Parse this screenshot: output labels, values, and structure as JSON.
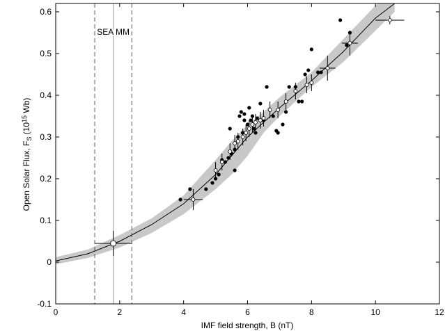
{
  "chart_data": {
    "type": "scatter",
    "x_label": "IMF field strength, B (nT)",
    "y_label": {
      "text": "Open Solar Flux, F",
      "sub": "S",
      "mid": " (10",
      "sup": "15",
      "end": " Wb)"
    },
    "xlim": [
      0,
      12
    ],
    "ylim": [
      -0.1,
      0.62
    ],
    "xticks": [
      0,
      2,
      4,
      6,
      8,
      10,
      12
    ],
    "yticks": [
      -0.1,
      0,
      0.1,
      0.2,
      0.3,
      0.4,
      0.5,
      0.6
    ],
    "fit": {
      "color": "#000000",
      "band_color": "#c8c8c8",
      "x": [
        0,
        1,
        2,
        3,
        4,
        5,
        5.5,
        6,
        6.5,
        7,
        8,
        9,
        10,
        10.6
      ],
      "values": [
        0.003,
        0.02,
        0.05,
        0.09,
        0.14,
        0.21,
        0.255,
        0.3,
        0.335,
        0.37,
        0.435,
        0.505,
        0.585,
        0.62
      ],
      "lower": [
        -0.005,
        0.01,
        0.035,
        0.07,
        0.115,
        0.175,
        0.21,
        0.255,
        0.31,
        0.35,
        0.42,
        0.48,
        0.555,
        0.6
      ],
      "upper": [
        0.012,
        0.03,
        0.065,
        0.105,
        0.16,
        0.245,
        0.29,
        0.33,
        0.36,
        0.395,
        0.455,
        0.535,
        0.615,
        0.66
      ]
    },
    "series": [
      {
        "color": "#000000",
        "x": [
          3.9,
          4.2,
          4.7,
          4.9,
          5.0,
          5.1,
          5.2,
          5.3,
          5.4,
          5.45,
          5.5,
          5.6,
          5.6,
          5.7,
          5.75,
          5.8,
          5.85,
          5.9,
          5.9,
          6.0,
          6.05,
          6.1,
          6.15,
          6.2,
          6.25,
          6.3,
          6.4,
          6.5,
          6.6,
          6.8,
          6.9,
          6.95,
          7.1,
          7.2,
          7.3,
          7.5,
          7.6,
          7.7,
          7.8,
          7.9,
          8.0,
          8.2,
          8.3,
          8.9,
          9.1,
          9.2
        ],
        "values": [
          0.15,
          0.175,
          0.175,
          0.19,
          0.2,
          0.21,
          0.245,
          0.24,
          0.25,
          0.32,
          0.26,
          0.22,
          0.27,
          0.3,
          0.35,
          0.36,
          0.31,
          0.34,
          0.355,
          0.33,
          0.37,
          0.34,
          0.35,
          0.32,
          0.31,
          0.345,
          0.38,
          0.34,
          0.42,
          0.35,
          0.315,
          0.31,
          0.33,
          0.36,
          0.42,
          0.42,
          0.385,
          0.385,
          0.45,
          0.46,
          0.51,
          0.455,
          0.455,
          0.58,
          0.52,
          0.55
        ]
      },
      {
        "color": "#ffffff",
        "x": [
          4.3,
          5.0,
          5.2,
          5.45,
          5.6,
          5.7,
          5.85,
          5.95,
          6.05,
          6.15,
          6.25,
          6.4,
          6.5,
          6.7,
          6.95,
          7.2,
          7.5,
          7.85,
          8.0,
          8.5,
          9.2,
          10.45
        ],
        "values": [
          0.15,
          0.22,
          0.24,
          0.265,
          0.285,
          0.29,
          0.3,
          0.31,
          0.32,
          0.33,
          0.335,
          0.34,
          0.345,
          0.365,
          0.365,
          0.385,
          0.41,
          0.425,
          0.43,
          0.465,
          0.525,
          0.58
        ],
        "yerr": [
          0.025,
          0.02,
          0.02,
          0.02,
          0.02,
          0.02,
          0.02,
          0.02,
          0.02,
          0.02,
          0.02,
          0.02,
          0.02,
          0.02,
          0.02,
          0.02,
          0.02,
          0.02,
          0.02,
          0.03,
          0.03,
          0.01
        ],
        "xerr": [
          0.3,
          0,
          0,
          0,
          0,
          0,
          0,
          0,
          0,
          0,
          0,
          0,
          0,
          0,
          0,
          0,
          0,
          0,
          0,
          0.25,
          0.25,
          0.45
        ]
      },
      {
        "color": "#ffffff",
        "x": [
          1.8
        ],
        "values": [
          0.045
        ],
        "yerr": [
          0.03
        ],
        "xerr": [
          0.58
        ]
      }
    ],
    "vlines": [
      {
        "x": 1.8,
        "style": "solid"
      },
      {
        "x": 1.22,
        "style": "dashed"
      },
      {
        "x": 2.38,
        "style": "dashed"
      }
    ],
    "annotation": {
      "text": "SEA MM",
      "x": 1.8,
      "y": 0.545
    }
  }
}
